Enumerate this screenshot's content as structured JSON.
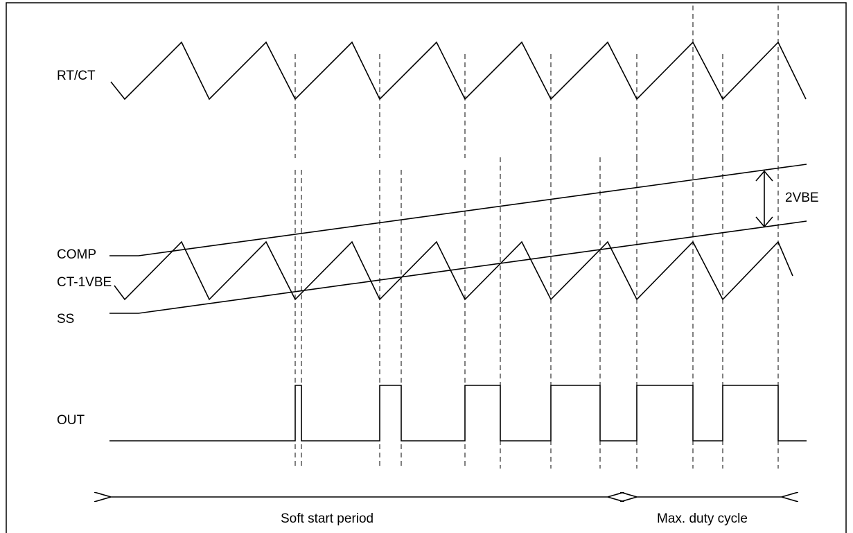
{
  "signals": {
    "rtct": "RT/CT",
    "comp": "COMP",
    "ct_1vbe": "CT-1VBE",
    "ss": "SS",
    "out": "OUT"
  },
  "annotations": {
    "vbe_gap": "2VBE",
    "soft_start": "Soft start period",
    "max_duty": "Max. duty cycle"
  },
  "colors": {
    "line": "#000000",
    "background": "#ffffff"
  }
}
